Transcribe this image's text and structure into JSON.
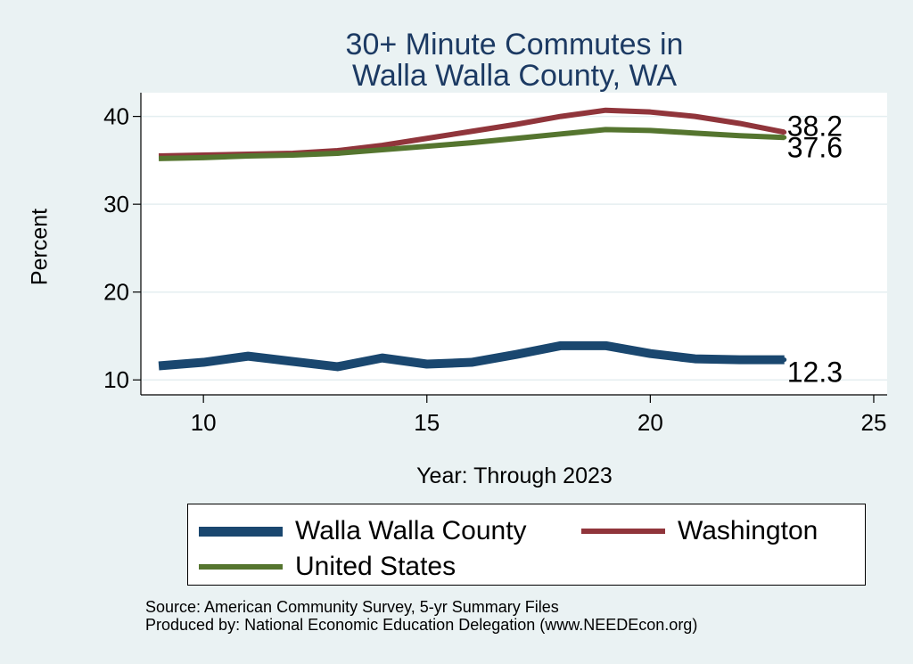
{
  "colors": {
    "background": "#eaf2f3",
    "plot_background": "#ffffff",
    "title": "#1c3a63",
    "walla_walla": "#1a476f",
    "washington": "#90353b",
    "united_states": "#55752f",
    "gridline": "#e4eef0"
  },
  "chart_data": {
    "type": "line",
    "title": [
      "30+ Minute Commutes in",
      "Walla Walla County, WA"
    ],
    "xlabel": "Year: Through 2023",
    "ylabel": "Percent",
    "xlim": [
      8.6,
      25.3
    ],
    "ylim": [
      8.3,
      42.7
    ],
    "xticks": [
      10,
      15,
      20,
      25
    ],
    "yticks": [
      10,
      20,
      30,
      40
    ],
    "grid": true,
    "legend_position": "bottom",
    "x": [
      9,
      10,
      11,
      12,
      13,
      14,
      15,
      16,
      17,
      18,
      19,
      20,
      21,
      22,
      23
    ],
    "series": [
      {
        "name": "Walla Walla County",
        "color": "#1a476f",
        "width": 10,
        "values": [
          11.6,
          12.0,
          12.7,
          12.1,
          11.5,
          12.5,
          11.8,
          12.0,
          12.9,
          13.9,
          13.9,
          13.0,
          12.4,
          12.3,
          12.3
        ],
        "end_label": "12.3"
      },
      {
        "name": "Washington",
        "color": "#90353b",
        "width": 6,
        "values": [
          35.5,
          35.6,
          35.7,
          35.8,
          36.1,
          36.7,
          37.5,
          38.3,
          39.1,
          40.0,
          40.7,
          40.5,
          40.0,
          39.2,
          38.2
        ],
        "end_label": "38.2"
      },
      {
        "name": "United States",
        "color": "#55752f",
        "width": 6,
        "values": [
          35.2,
          35.3,
          35.5,
          35.6,
          35.8,
          36.2,
          36.6,
          37.0,
          37.5,
          38.0,
          38.5,
          38.4,
          38.1,
          37.8,
          37.6
        ],
        "end_label": "37.6"
      }
    ]
  },
  "source_lines": [
    "Source: American Community Survey, 5-yr Summary Files",
    "Produced by: National Economic Education Delegation (www.NEEDEcon.org)"
  ]
}
